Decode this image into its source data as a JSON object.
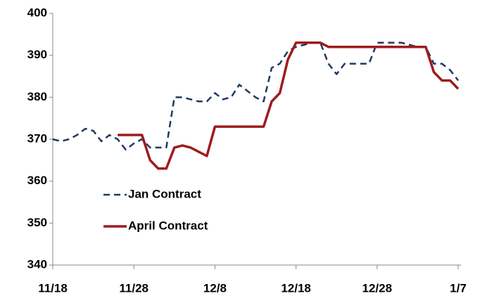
{
  "chart_data": {
    "type": "line",
    "categories": [
      "11/18",
      null,
      null,
      null,
      null,
      null,
      null,
      null,
      null,
      null,
      "11/28",
      null,
      null,
      null,
      null,
      null,
      null,
      null,
      null,
      null,
      "12/8",
      null,
      null,
      null,
      null,
      null,
      null,
      null,
      null,
      null,
      "12/18",
      null,
      null,
      null,
      null,
      null,
      null,
      null,
      null,
      null,
      "12/28",
      null,
      null,
      null,
      null,
      null,
      null,
      null,
      null,
      null,
      "1/7"
    ],
    "series": [
      {
        "name": "Jan Contract",
        "color": "#1f3a60",
        "dash": true,
        "values": [
          370,
          369.5,
          370,
          371,
          372.5,
          372,
          369.5,
          371,
          370,
          367.5,
          369,
          370,
          368,
          368,
          368,
          380,
          380,
          379.5,
          379,
          379,
          381,
          379.5,
          380,
          383,
          381.5,
          380,
          379,
          387,
          388,
          391,
          392,
          392.5,
          393,
          393,
          388,
          385.5,
          388,
          388,
          388,
          388,
          393,
          393,
          393,
          393,
          392.5,
          392,
          392,
          388,
          388,
          386.5,
          384
        ]
      },
      {
        "name": "April Contract",
        "color": "#9e1b1e",
        "dash": false,
        "values": [
          null,
          null,
          null,
          null,
          null,
          null,
          null,
          null,
          371,
          371,
          371,
          371,
          365,
          363,
          363,
          368,
          368.5,
          368,
          367,
          366,
          373,
          373,
          373,
          373,
          373,
          373,
          373,
          379,
          381,
          389,
          393,
          393,
          393,
          393,
          392,
          392,
          392,
          392,
          392,
          392,
          392,
          392,
          392,
          392,
          392,
          392,
          392,
          386,
          384,
          384,
          382
        ]
      }
    ],
    "ylim": [
      340,
      400
    ],
    "yticks": [
      340,
      350,
      360,
      370,
      380,
      390,
      400
    ],
    "grid": false,
    "legend": "lower-left"
  }
}
